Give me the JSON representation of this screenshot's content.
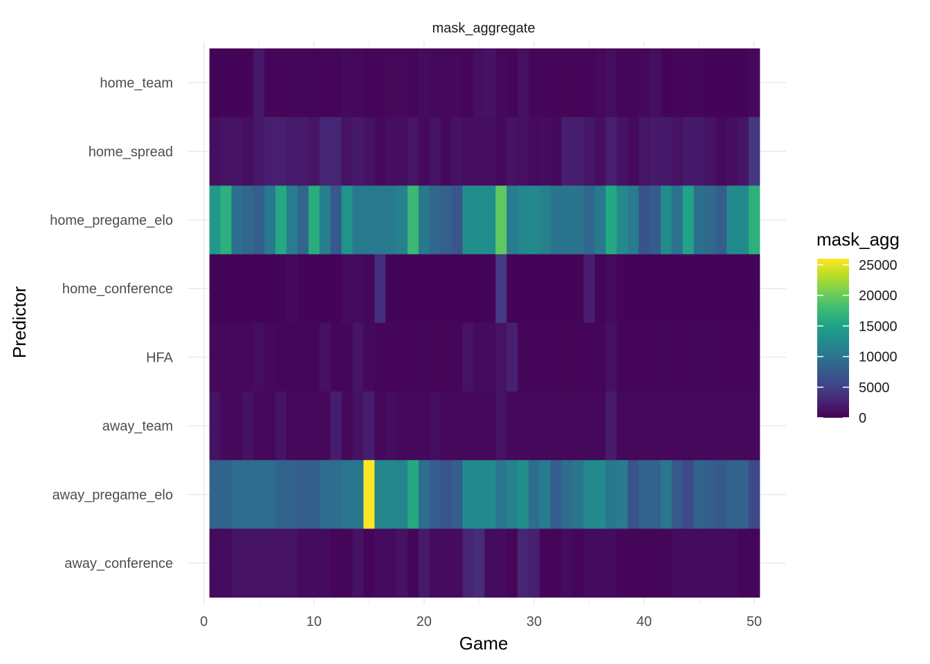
{
  "chart_data": {
    "type": "heatmap",
    "title": "mask_aggregate",
    "xlabel": "Game",
    "ylabel": "Predictor",
    "legend_title": "mask_agg",
    "legend_placement": "right",
    "xlim": [
      0,
      50
    ],
    "x_ticks": [
      0,
      10,
      20,
      30,
      40,
      50
    ],
    "color_range": [
      0,
      26000
    ],
    "legend_ticks": [
      0,
      5000,
      10000,
      15000,
      20000,
      25000
    ],
    "colormap": "viridis",
    "grid": true,
    "games": [
      1,
      2,
      3,
      4,
      5,
      6,
      7,
      8,
      9,
      10,
      11,
      12,
      13,
      14,
      15,
      16,
      17,
      18,
      19,
      20,
      21,
      22,
      23,
      24,
      25,
      26,
      27,
      28,
      29,
      30,
      31,
      32,
      33,
      34,
      35,
      36,
      37,
      38,
      39,
      40,
      41,
      42,
      43,
      44,
      45,
      46,
      47,
      48,
      49,
      50
    ],
    "predictors": [
      "home_team",
      "home_spread",
      "home_pregame_elo",
      "home_conference",
      "HFA",
      "away_team",
      "away_pregame_elo",
      "away_conference"
    ],
    "values": [
      [
        300,
        300,
        300,
        300,
        1700,
        400,
        400,
        400,
        400,
        400,
        400,
        400,
        700,
        500,
        400,
        400,
        500,
        500,
        400,
        800,
        600,
        500,
        500,
        400,
        1100,
        1300,
        500,
        400,
        1200,
        400,
        400,
        400,
        400,
        400,
        400,
        500,
        1000,
        400,
        400,
        500,
        1000,
        300,
        400,
        400,
        400,
        300,
        300,
        300,
        300,
        600
      ],
      [
        1000,
        1400,
        1400,
        1000,
        1800,
        2300,
        2300,
        1900,
        1900,
        1500,
        2800,
        2800,
        1300,
        1800,
        1300,
        700,
        1000,
        1000,
        1500,
        700,
        1300,
        600,
        1300,
        1000,
        1000,
        1000,
        700,
        1300,
        1100,
        700,
        900,
        700,
        2300,
        2300,
        1600,
        1000,
        2300,
        1300,
        700,
        1500,
        1800,
        1800,
        1300,
        1800,
        1800,
        1300,
        700,
        1000,
        1500,
        4200
      ],
      [
        14000,
        16500,
        9500,
        8800,
        7800,
        10500,
        15800,
        10800,
        8500,
        16200,
        11200,
        7300,
        13500,
        10500,
        10500,
        10500,
        10500,
        11500,
        17500,
        10500,
        8800,
        8000,
        7000,
        12800,
        12800,
        12800,
        19500,
        10800,
        12000,
        12200,
        11500,
        10000,
        10000,
        10000,
        8800,
        10500,
        15800,
        12200,
        10800,
        6800,
        7500,
        12500,
        9800,
        15000,
        9500,
        9000,
        7800,
        12300,
        12300,
        16500
      ],
      [
        300,
        300,
        300,
        300,
        300,
        300,
        300,
        600,
        300,
        300,
        300,
        300,
        800,
        800,
        600,
        3500,
        300,
        300,
        300,
        300,
        300,
        300,
        300,
        300,
        300,
        300,
        4500,
        300,
        300,
        300,
        300,
        300,
        300,
        300,
        2300,
        300,
        800,
        300,
        300,
        300,
        300,
        300,
        300,
        300,
        300,
        300,
        300,
        300,
        300,
        300
      ],
      [
        500,
        500,
        500,
        500,
        900,
        500,
        400,
        400,
        400,
        400,
        1200,
        400,
        400,
        1400,
        600,
        400,
        400,
        400,
        400,
        400,
        400,
        400,
        400,
        1300,
        800,
        800,
        1300,
        2400,
        400,
        400,
        400,
        400,
        400,
        400,
        400,
        400,
        1200,
        400,
        400,
        400,
        400,
        400,
        400,
        400,
        400,
        400,
        400,
        400,
        400,
        400
      ],
      [
        1300,
        500,
        500,
        1300,
        500,
        500,
        1400,
        500,
        500,
        500,
        500,
        2200,
        600,
        1300,
        2200,
        500,
        900,
        500,
        500,
        500,
        900,
        500,
        500,
        500,
        500,
        500,
        1300,
        500,
        500,
        500,
        500,
        500,
        500,
        500,
        500,
        500,
        1900,
        500,
        500,
        500,
        500,
        500,
        500,
        500,
        500,
        500,
        500,
        500,
        500,
        500
      ],
      [
        8300,
        8300,
        9300,
        9300,
        9300,
        9300,
        8300,
        8300,
        7800,
        7800,
        9300,
        9300,
        10300,
        10300,
        26000,
        11800,
        11800,
        11800,
        15800,
        9300,
        7800,
        6800,
        7800,
        12300,
        12300,
        12300,
        10300,
        11300,
        12800,
        9300,
        10800,
        7800,
        9300,
        10300,
        12300,
        12300,
        10300,
        10800,
        6800,
        8300,
        8300,
        10300,
        7300,
        5800,
        8300,
        7800,
        7300,
        8300,
        8300,
        5800
      ],
      [
        800,
        800,
        1300,
        1300,
        1300,
        1300,
        1300,
        1300,
        800,
        800,
        800,
        400,
        400,
        1300,
        400,
        800,
        800,
        1300,
        400,
        1800,
        800,
        800,
        800,
        2800,
        3300,
        800,
        800,
        400,
        2800,
        2300,
        400,
        400,
        800,
        400,
        800,
        800,
        800,
        400,
        400,
        400,
        400,
        400,
        800,
        800,
        800,
        800,
        800,
        800,
        400,
        400
      ]
    ]
  },
  "colors": {
    "background": "#ffffff",
    "gridline": "#ebebeb",
    "tick_text": "#4d4d4d",
    "title_text": "#000000"
  }
}
